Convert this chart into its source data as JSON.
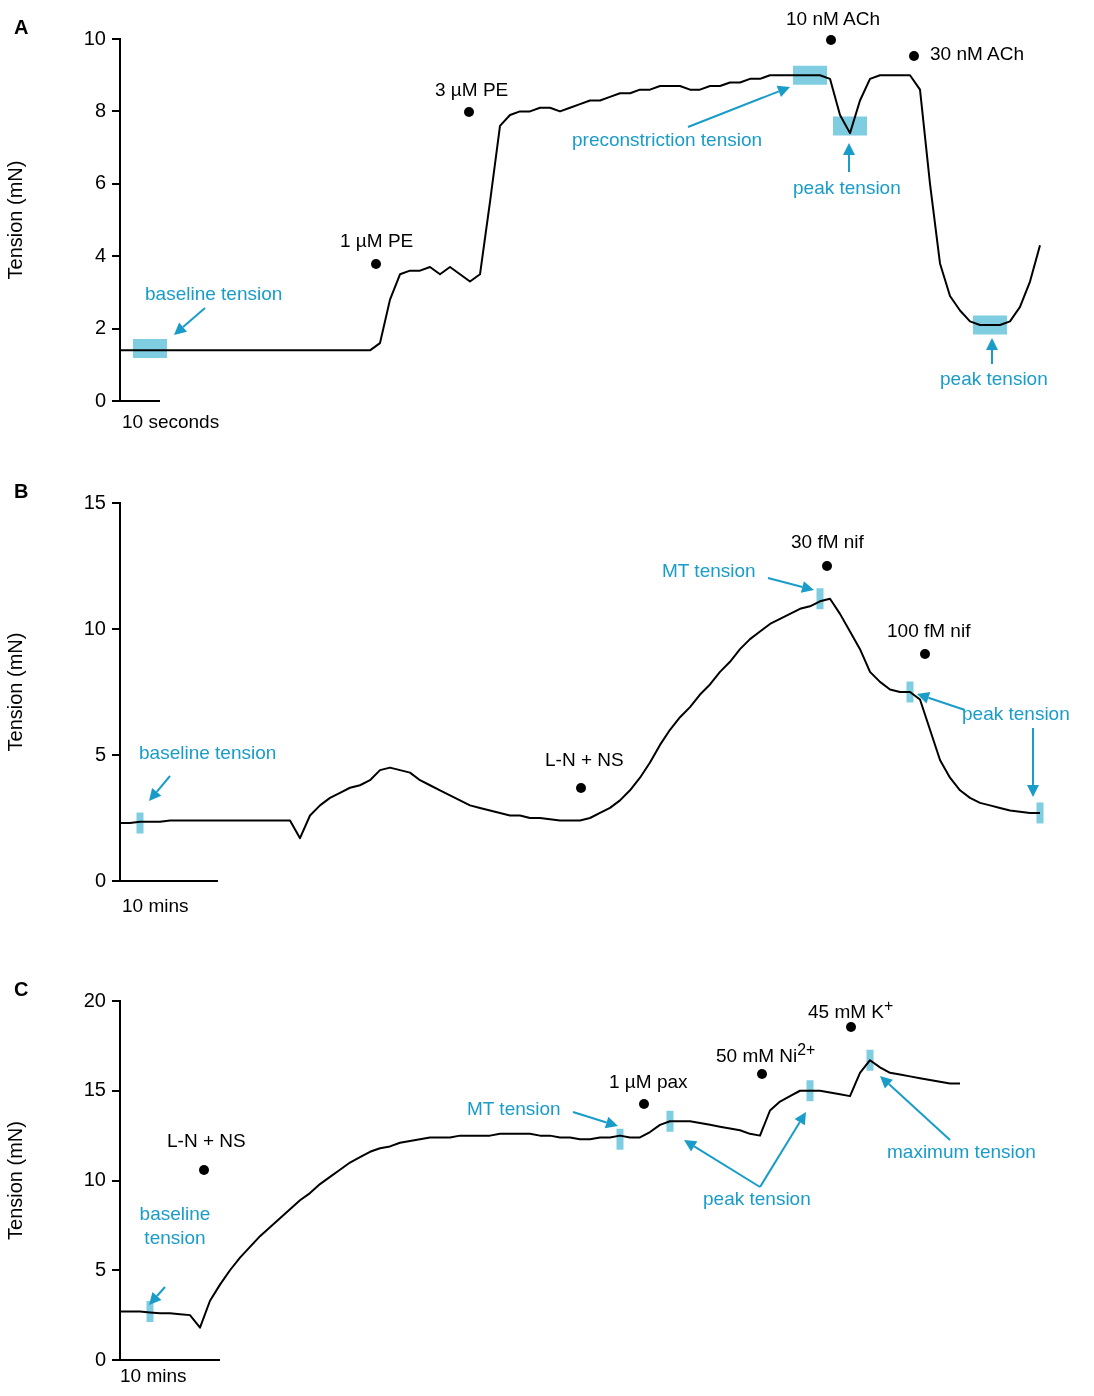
{
  "chart_data": [
    {
      "type": "line",
      "title": "A",
      "ylabel": "Tension (mN)",
      "tick_labels": "y",
      "grid": false,
      "legend": false,
      "marker": "none",
      "ylim": [
        0,
        10
      ],
      "yticks": [
        0,
        2,
        4,
        6,
        8,
        10
      ],
      "categories": [
        null,
        null,
        null,
        null,
        null,
        null,
        null,
        null,
        null,
        null,
        null,
        null,
        null,
        null,
        null,
        null,
        null,
        null,
        null,
        null,
        null,
        null,
        null,
        null,
        null,
        null,
        null,
        null,
        null,
        null,
        null,
        null,
        null,
        null,
        null,
        null,
        null,
        null,
        null,
        null,
        null,
        null,
        null,
        null,
        null,
        null,
        null,
        null,
        null,
        null,
        null,
        null,
        null,
        null,
        null,
        null,
        null,
        null,
        null,
        null,
        null,
        null,
        null,
        null,
        null,
        null,
        null,
        null,
        null,
        null,
        null,
        null,
        null,
        null,
        null,
        null,
        null,
        null,
        null,
        null,
        null,
        null,
        null,
        null,
        null,
        null,
        null,
        null,
        null,
        null,
        null,
        null,
        null
      ],
      "series": [
        {
          "color": "#000000",
          "values": [
            1.4,
            1.4,
            1.4,
            1.4,
            1.4,
            1.4,
            1.4,
            1.4,
            1.4,
            1.4,
            1.4,
            1.4,
            1.4,
            1.4,
            1.4,
            1.4,
            1.4,
            1.4,
            1.4,
            1.4,
            1.4,
            1.4,
            1.4,
            1.4,
            1.4,
            1.4,
            1.6,
            2.8,
            3.5,
            3.6,
            3.6,
            3.7,
            3.5,
            3.7,
            3.5,
            3.3,
            3.5,
            5.5,
            7.6,
            7.9,
            8.0,
            8.0,
            8.1,
            8.1,
            8.0,
            8.1,
            8.2,
            8.3,
            8.3,
            8.4,
            8.5,
            8.5,
            8.6,
            8.6,
            8.7,
            8.7,
            8.7,
            8.6,
            8.6,
            8.7,
            8.7,
            8.8,
            8.8,
            8.9,
            8.9,
            9.0,
            9.0,
            9.0,
            9.0,
            9.0,
            9.0,
            8.9,
            7.9,
            7.4,
            8.3,
            8.9,
            9.0,
            9.0,
            9.0,
            9.0,
            8.6,
            6.0,
            3.8,
            2.9,
            2.5,
            2.2,
            2.1,
            2.1,
            2.1,
            2.2,
            2.6,
            3.3,
            4.3
          ]
        },
        {
          "type": "scatter",
          "marker": "square",
          "color": "#7ecde0",
          "values": [
            null,
            null,
            null,
            1.45,
            null,
            null,
            null,
            null,
            null,
            null,
            null,
            null,
            null,
            null,
            null,
            null,
            null,
            null,
            null,
            null,
            null,
            null,
            null,
            null,
            null,
            null,
            null,
            null,
            null,
            null,
            null,
            null,
            null,
            null,
            null,
            null,
            null,
            null,
            null,
            null,
            null,
            null,
            null,
            null,
            null,
            null,
            null,
            null,
            null,
            null,
            null,
            null,
            null,
            null,
            null,
            null,
            null,
            null,
            null,
            null,
            null,
            null,
            null,
            null,
            null,
            null,
            null,
            null,
            null,
            9.0,
            null,
            null,
            null,
            7.6,
            null,
            null,
            null,
            null,
            null,
            null,
            null,
            null,
            null,
            null,
            null,
            null,
            null,
            2.1,
            null,
            null,
            null,
            null,
            null
          ]
        }
      ],
      "annotations": [
        "1 µM PE",
        "3 µM PE",
        "10 nM ACh",
        "30 nM ACh",
        "baseline tension",
        "preconstriction tension",
        "peak tension",
        "peak tension",
        "10 seconds"
      ]
    },
    {
      "type": "line",
      "title": "B",
      "ylabel": "Tension (mN)",
      "tick_labels": "y",
      "grid": false,
      "legend": false,
      "marker": "none",
      "ylim": [
        0,
        15
      ],
      "yticks": [
        0,
        5,
        10,
        15
      ],
      "categories": [
        null,
        null,
        null,
        null,
        null,
        null,
        null,
        null,
        null,
        null,
        null,
        null,
        null,
        null,
        null,
        null,
        null,
        null,
        null,
        null,
        null,
        null,
        null,
        null,
        null,
        null,
        null,
        null,
        null,
        null,
        null,
        null,
        null,
        null,
        null,
        null,
        null,
        null,
        null,
        null,
        null,
        null,
        null,
        null,
        null,
        null,
        null,
        null,
        null,
        null,
        null,
        null,
        null,
        null,
        null,
        null,
        null,
        null,
        null,
        null,
        null,
        null,
        null,
        null,
        null,
        null,
        null,
        null,
        null,
        null,
        null,
        null,
        null,
        null,
        null,
        null,
        null,
        null,
        null,
        null,
        null,
        null,
        null,
        null,
        null,
        null,
        null,
        null,
        null,
        null,
        null,
        null,
        null
      ],
      "series": [
        {
          "color": "#000000",
          "values": [
            2.3,
            2.3,
            2.35,
            2.35,
            2.35,
            2.4,
            2.4,
            2.4,
            2.4,
            2.4,
            2.4,
            2.4,
            2.4,
            2.4,
            2.4,
            2.4,
            2.4,
            2.4,
            1.7,
            2.6,
            3.0,
            3.3,
            3.5,
            3.7,
            3.8,
            4.0,
            4.4,
            4.5,
            4.4,
            4.3,
            4.0,
            3.8,
            3.6,
            3.4,
            3.2,
            3.0,
            2.9,
            2.8,
            2.7,
            2.6,
            2.6,
            2.5,
            2.5,
            2.45,
            2.4,
            2.4,
            2.4,
            2.5,
            2.7,
            2.9,
            3.2,
            3.6,
            4.1,
            4.7,
            5.4,
            6.0,
            6.5,
            6.9,
            7.4,
            7.8,
            8.3,
            8.7,
            9.2,
            9.6,
            9.9,
            10.2,
            10.4,
            10.6,
            10.8,
            10.9,
            11.1,
            11.2,
            10.6,
            9.9,
            9.2,
            8.3,
            7.9,
            7.6,
            7.5,
            7.5,
            7.2,
            6.0,
            4.8,
            4.1,
            3.6,
            3.3,
            3.1,
            3.0,
            2.9,
            2.8,
            2.75,
            2.7,
            2.7
          ]
        },
        {
          "type": "scatter",
          "marker": "square",
          "color": "#7ecde0",
          "values": [
            null,
            null,
            2.3,
            null,
            null,
            null,
            null,
            null,
            null,
            null,
            null,
            null,
            null,
            null,
            null,
            null,
            null,
            null,
            null,
            null,
            null,
            null,
            null,
            null,
            null,
            null,
            null,
            null,
            null,
            null,
            null,
            null,
            null,
            null,
            null,
            null,
            null,
            null,
            null,
            null,
            null,
            null,
            null,
            null,
            null,
            null,
            null,
            null,
            null,
            null,
            null,
            null,
            null,
            null,
            null,
            null,
            null,
            null,
            null,
            null,
            null,
            null,
            null,
            null,
            null,
            null,
            null,
            null,
            null,
            null,
            11.2,
            null,
            null,
            null,
            null,
            null,
            null,
            null,
            null,
            7.5,
            null,
            null,
            null,
            null,
            null,
            null,
            null,
            null,
            null,
            null,
            null,
            null,
            2.7
          ]
        }
      ],
      "annotations": [
        "L-N + NS",
        "30 fM nif",
        "100 fM nif",
        "baseline tension",
        "MT tension",
        "peak tension",
        "10 mins"
      ]
    },
    {
      "type": "line",
      "title": "C",
      "ylabel": "Tension (mN)",
      "tick_labels": "y",
      "grid": false,
      "legend": false,
      "marker": "none",
      "ylim": [
        0,
        20
      ],
      "yticks": [
        0,
        5,
        10,
        15,
        20
      ],
      "categories": [
        null,
        null,
        null,
        null,
        null,
        null,
        null,
        null,
        null,
        null,
        null,
        null,
        null,
        null,
        null,
        null,
        null,
        null,
        null,
        null,
        null,
        null,
        null,
        null,
        null,
        null,
        null,
        null,
        null,
        null,
        null,
        null,
        null,
        null,
        null,
        null,
        null,
        null,
        null,
        null,
        null,
        null,
        null,
        null,
        null,
        null,
        null,
        null,
        null,
        null,
        null,
        null,
        null,
        null,
        null,
        null,
        null,
        null,
        null,
        null,
        null,
        null,
        null,
        null,
        null,
        null,
        null,
        null,
        null,
        null,
        null,
        null,
        null,
        null,
        null,
        null,
        null,
        null,
        null,
        null,
        null,
        null,
        null,
        null,
        null
      ],
      "series": [
        {
          "color": "#000000",
          "values": [
            2.7,
            2.7,
            2.7,
            2.65,
            2.6,
            2.6,
            2.55,
            2.5,
            1.8,
            3.3,
            4.2,
            5.0,
            5.7,
            6.3,
            6.9,
            7.4,
            7.9,
            8.4,
            8.9,
            9.3,
            9.8,
            10.2,
            10.6,
            11.0,
            11.3,
            11.6,
            11.8,
            11.9,
            12.1,
            12.2,
            12.3,
            12.4,
            12.4,
            12.4,
            12.5,
            12.5,
            12.5,
            12.5,
            12.6,
            12.6,
            12.6,
            12.6,
            12.5,
            12.5,
            12.4,
            12.4,
            12.3,
            12.3,
            12.4,
            12.4,
            12.5,
            12.4,
            12.4,
            12.7,
            13.1,
            13.3,
            13.3,
            13.3,
            13.2,
            13.1,
            13.0,
            12.9,
            12.8,
            12.6,
            12.5,
            13.9,
            14.4,
            14.7,
            15.0,
            15.0,
            15.0,
            14.9,
            14.8,
            14.7,
            16.0,
            16.7,
            16.3,
            16.0,
            15.9,
            15.8,
            15.7,
            15.6,
            15.5,
            15.4,
            15.4
          ]
        },
        {
          "type": "scatter",
          "marker": "square",
          "color": "#7ecde0",
          "values": [
            null,
            null,
            null,
            2.7,
            null,
            null,
            null,
            null,
            null,
            null,
            null,
            null,
            null,
            null,
            null,
            null,
            null,
            null,
            null,
            null,
            null,
            null,
            null,
            null,
            null,
            null,
            null,
            null,
            null,
            null,
            null,
            null,
            null,
            null,
            null,
            null,
            null,
            null,
            null,
            null,
            null,
            null,
            null,
            null,
            null,
            null,
            null,
            null,
            null,
            null,
            12.3,
            null,
            null,
            null,
            null,
            13.3,
            null,
            null,
            null,
            null,
            null,
            null,
            null,
            null,
            null,
            null,
            null,
            null,
            null,
            15.0,
            null,
            null,
            null,
            null,
            null,
            16.7,
            null,
            null,
            null,
            null,
            null,
            null,
            null,
            null,
            null
          ]
        }
      ],
      "annotations": [
        "L-N + NS",
        "1 µM pax",
        "50 mM Ni$^{2+}$",
        "45 mM K$^{+}$",
        "baseline tension",
        "MT tension",
        "peak tension",
        "maximum tension",
        "10 mins"
      ]
    }
  ]
}
